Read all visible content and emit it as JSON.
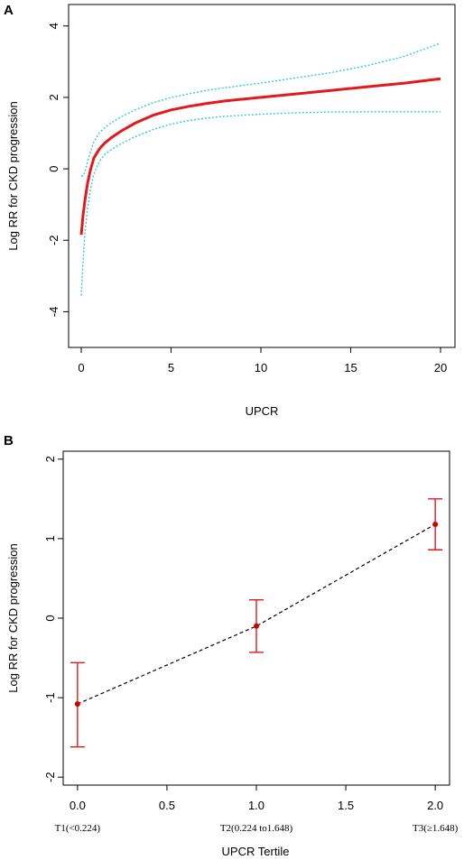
{
  "chart_data": [
    {
      "panel": "A",
      "type": "line",
      "xlabel": "UPCR",
      "ylabel": "Log RR for CKD progression",
      "xlim": [
        0,
        20
      ],
      "ylim": [
        -5,
        4.6
      ],
      "xticks": [
        0,
        5,
        10,
        15,
        20
      ],
      "yticks": [
        -4,
        -2,
        0,
        2,
        4
      ],
      "series": [
        {
          "role": "estimate",
          "color": "#e31a1c",
          "style": "solid",
          "x": [
            0,
            0.1,
            0.2,
            0.35,
            0.5,
            0.7,
            1.0,
            1.3,
            1.7,
            2.2,
            3,
            4,
            5,
            6,
            7,
            8,
            10,
            12,
            14,
            16,
            18,
            20
          ],
          "y": [
            -1.85,
            -1.3,
            -0.9,
            -0.4,
            -0.05,
            0.3,
            0.55,
            0.72,
            0.88,
            1.05,
            1.28,
            1.5,
            1.65,
            1.75,
            1.83,
            1.9,
            2.0,
            2.1,
            2.2,
            2.3,
            2.4,
            2.52
          ]
        },
        {
          "role": "upper-ci",
          "color": "#33cccc",
          "style": "dotted",
          "x": [
            0,
            0.1,
            0.2,
            0.35,
            0.5,
            0.7,
            1.0,
            1.3,
            1.7,
            2.2,
            3,
            4,
            5,
            6,
            7,
            8,
            10,
            12,
            14,
            16,
            18,
            20
          ],
          "y": [
            -0.2,
            -0.2,
            -0.1,
            0.2,
            0.45,
            0.75,
            1.0,
            1.15,
            1.3,
            1.45,
            1.65,
            1.85,
            2.0,
            2.1,
            2.2,
            2.27,
            2.4,
            2.55,
            2.7,
            2.9,
            3.15,
            3.52
          ]
        },
        {
          "role": "lower-ci",
          "color": "#33cccc",
          "style": "dotted",
          "x": [
            0,
            0.1,
            0.2,
            0.35,
            0.5,
            0.7,
            1.0,
            1.3,
            1.7,
            2.2,
            3,
            4,
            5,
            6,
            7,
            8,
            10,
            12,
            14,
            16,
            18,
            20
          ],
          "y": [
            -3.55,
            -2.6,
            -1.8,
            -1.1,
            -0.6,
            -0.15,
            0.2,
            0.4,
            0.55,
            0.7,
            0.9,
            1.1,
            1.25,
            1.35,
            1.42,
            1.47,
            1.53,
            1.57,
            1.59,
            1.6,
            1.6,
            1.6
          ]
        }
      ]
    },
    {
      "panel": "B",
      "type": "line",
      "xlabel": "UPCR Tertile",
      "ylabel": "Log RR for CKD progression",
      "xlim": [
        -0.08,
        2.08
      ],
      "ylim": [
        -2.1,
        2.1
      ],
      "xticks": [
        0,
        0.5,
        1,
        1.5,
        2
      ],
      "xtick_labels": [
        "0.0",
        "0.5",
        "1.0",
        "1.5",
        "2.0"
      ],
      "yticks": [
        -2,
        -1,
        0,
        1,
        2
      ],
      "tertile_labels": [
        "T1(<0.224)",
        "T2(0.224 to1.648)",
        "T3(≥1.648)"
      ],
      "points": {
        "x": [
          0,
          1,
          2
        ],
        "y": [
          -1.08,
          -0.1,
          1.18
        ],
        "lower": [
          -1.62,
          -0.43,
          0.86
        ],
        "upper": [
          -0.56,
          0.23,
          1.5
        ]
      },
      "line_color": "#000000",
      "line_style": "dashed",
      "marker_color": "#cc0000",
      "errorbar_color": "#e31a1c"
    }
  ]
}
